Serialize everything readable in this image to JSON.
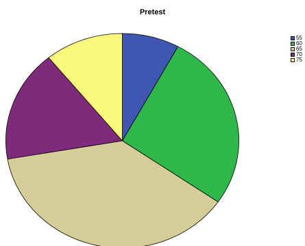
{
  "chart_data": {
    "type": "pie",
    "title": "Pretest",
    "categories": [
      "55",
      "60",
      "65",
      "70",
      "75"
    ],
    "values": [
      8,
      27,
      38,
      17,
      11
    ],
    "colors": [
      "#3f57b1",
      "#2fb74a",
      "#d4cd98",
      "#7f2b7c",
      "#fbf97b"
    ],
    "legend": "right",
    "start_angle_deg": 0,
    "direction": "clockwise"
  }
}
